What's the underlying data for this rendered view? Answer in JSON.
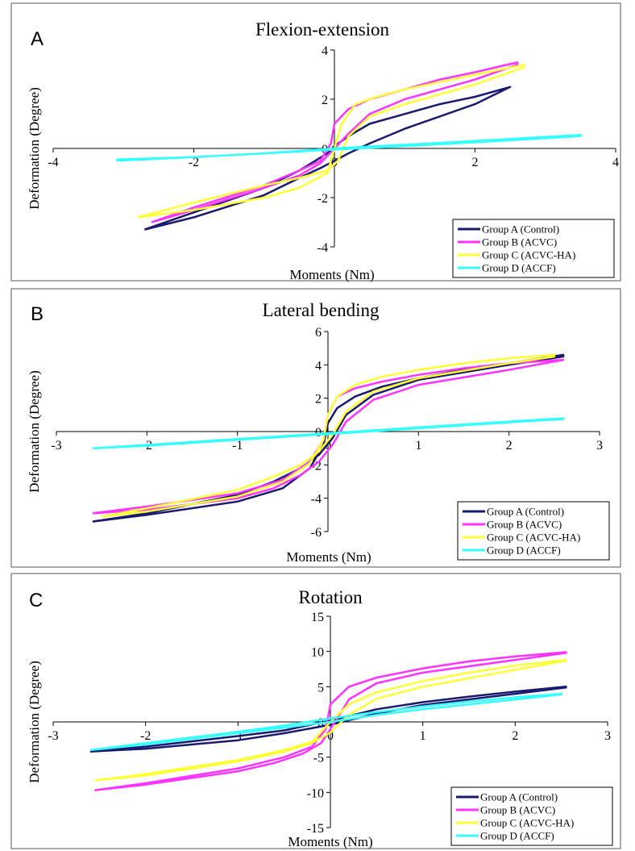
{
  "chart_data": [
    {
      "type": "line",
      "panel_label": "A",
      "title": "Flexion-extension",
      "xlabel": "Moments (Nm)",
      "ylabel": "Deformation (Degree)",
      "xlim": [
        -4,
        4
      ],
      "ylim": [
        -4,
        4
      ],
      "xticks": [
        "-4",
        "-2",
        "0",
        "2",
        "4"
      ],
      "yticks": [
        "-4",
        "-2",
        "0",
        "2",
        "4"
      ],
      "grid": false,
      "legend": "bottom-right",
      "series": [
        {
          "name": "Group A (Control)",
          "color": "#1a1a6e",
          "x": [
            -2.7,
            -2.0,
            -1.0,
            -0.5,
            -0.1,
            0.0,
            0.2,
            0.5,
            1.0,
            1.5,
            2.0,
            2.5
          ],
          "y": [
            -3.3,
            -2.6,
            -1.6,
            -0.9,
            -0.2,
            0.1,
            0.5,
            1.0,
            1.4,
            1.8,
            2.1,
            2.5
          ],
          "x_return": [
            2.5,
            2.0,
            1.0,
            0.5,
            0.2,
            0.0,
            -0.2,
            -0.5,
            -1.0,
            -2.0,
            -2.7
          ],
          "y_return": [
            2.5,
            1.8,
            0.8,
            0.2,
            -0.2,
            -0.5,
            -0.8,
            -1.2,
            -1.9,
            -2.8,
            -3.3
          ]
        },
        {
          "name": "Group B (ACVC)",
          "color": "#ff33ff",
          "x": [
            -2.6,
            -2.0,
            -1.0,
            -0.5,
            -0.2,
            -0.05,
            0.0,
            0.2,
            0.5,
            1.0,
            1.5,
            2.0,
            2.6
          ],
          "y": [
            -3.0,
            -2.4,
            -1.5,
            -0.9,
            -0.5,
            0.2,
            1.0,
            1.6,
            2.0,
            2.4,
            2.8,
            3.1,
            3.5
          ],
          "x_return": [
            2.6,
            2.0,
            1.0,
            0.5,
            0.2,
            0.0,
            -0.2,
            -0.5,
            -1.0,
            -2.0,
            -2.6
          ],
          "y_return": [
            3.4,
            2.8,
            2.0,
            1.4,
            0.6,
            0.0,
            -0.6,
            -1.1,
            -1.6,
            -2.5,
            -3.0
          ]
        },
        {
          "name": "Group C (ACVC-HA)",
          "color": "#ffff33",
          "x": [
            -2.8,
            -2.0,
            -1.0,
            -0.5,
            -0.1,
            0.0,
            0.1,
            0.3,
            0.6,
            1.0,
            1.5,
            2.0,
            2.7
          ],
          "y": [
            -2.8,
            -2.5,
            -2.0,
            -1.6,
            -1.0,
            0.0,
            1.0,
            1.8,
            2.1,
            2.4,
            2.7,
            3.0,
            3.4
          ],
          "x_return": [
            2.7,
            2.0,
            1.0,
            0.5,
            0.2,
            0.05,
            -0.1,
            -0.5,
            -1.0,
            -2.0,
            -2.8
          ],
          "y_return": [
            3.3,
            2.6,
            1.8,
            1.3,
            0.5,
            -0.5,
            -0.9,
            -1.2,
            -1.5,
            -2.2,
            -2.8
          ]
        },
        {
          "name": "Group D (ACCF)",
          "color": "#33ffff",
          "x": [
            -3.1,
            -2.0,
            -1.0,
            0.0,
            1.0,
            2.0,
            3.5
          ],
          "y": [
            -0.5,
            -0.35,
            -0.2,
            0.0,
            0.15,
            0.3,
            0.55
          ],
          "x_return": [
            3.5,
            2.0,
            1.0,
            0.0,
            -1.0,
            -2.0,
            -3.1
          ],
          "y_return": [
            0.5,
            0.25,
            0.1,
            -0.05,
            -0.2,
            -0.35,
            -0.45
          ]
        }
      ]
    },
    {
      "type": "line",
      "panel_label": "B",
      "title": "Lateral bending",
      "xlabel": "Moments (Nm)",
      "ylabel": "Deformation (Degree)",
      "xlim": [
        -3,
        3
      ],
      "ylim": [
        -6,
        6
      ],
      "xticks": [
        "-3",
        "-2",
        "-1",
        "0",
        "1",
        "2",
        "3"
      ],
      "yticks": [
        "-6",
        "-4",
        "-2",
        "0",
        "2",
        "4",
        "6"
      ],
      "grid": false,
      "legend": "bottom-right",
      "series": [
        {
          "name": "Group A (Control)",
          "color": "#1a1a6e",
          "x": [
            -2.6,
            -2.0,
            -1.0,
            -0.5,
            -0.2,
            -0.05,
            0.0,
            0.1,
            0.3,
            0.6,
            1.0,
            1.5,
            2.0,
            2.6
          ],
          "y": [
            -5.4,
            -5.0,
            -4.2,
            -3.4,
            -2.2,
            -0.8,
            0.5,
            1.4,
            2.1,
            2.7,
            3.2,
            3.7,
            4.1,
            4.6
          ],
          "x_return": [
            2.6,
            2.0,
            1.0,
            0.5,
            0.2,
            0.05,
            -0.1,
            -0.3,
            -0.6,
            -1.0,
            -2.0,
            -2.6
          ],
          "y_return": [
            4.5,
            4.0,
            3.1,
            2.2,
            1.0,
            -0.4,
            -1.4,
            -2.2,
            -3.0,
            -3.8,
            -4.9,
            -5.4
          ]
        },
        {
          "name": "Group B (ACVC)",
          "color": "#ff33ff",
          "x": [
            -2.6,
            -2.0,
            -1.0,
            -0.5,
            -0.2,
            -0.05,
            0.0,
            0.1,
            0.3,
            0.6,
            1.0,
            1.5,
            2.0,
            2.6
          ],
          "y": [
            -4.9,
            -4.5,
            -3.7,
            -2.9,
            -1.8,
            -0.5,
            1.0,
            2.1,
            2.6,
            3.0,
            3.4,
            3.8,
            4.1,
            4.3
          ],
          "x_return": [
            2.6,
            2.0,
            1.0,
            0.5,
            0.2,
            0.05,
            -0.1,
            -0.3,
            -0.6,
            -1.0,
            -2.0,
            -2.6
          ],
          "y_return": [
            4.3,
            3.7,
            2.8,
            1.9,
            0.6,
            -0.8,
            -1.8,
            -2.6,
            -3.4,
            -4.0,
            -4.7,
            -4.9
          ]
        },
        {
          "name": "Group C (ACVC-HA)",
          "color": "#ffff33",
          "x": [
            -2.5,
            -2.0,
            -1.0,
            -0.5,
            -0.2,
            -0.05,
            0.0,
            0.1,
            0.3,
            0.6,
            1.0,
            1.5,
            2.0,
            2.5
          ],
          "y": [
            -5.1,
            -4.8,
            -3.9,
            -3.0,
            -1.9,
            -0.5,
            1.0,
            2.1,
            2.8,
            3.3,
            3.7,
            4.1,
            4.4,
            4.6
          ],
          "x_return": [
            2.5,
            2.0,
            1.0,
            0.5,
            0.2,
            0.05,
            -0.1,
            -0.3,
            -0.6,
            -1.0,
            -2.0,
            -2.5
          ],
          "y_return": [
            4.5,
            4.1,
            3.2,
            2.4,
            1.2,
            -0.2,
            -1.2,
            -2.0,
            -2.7,
            -3.5,
            -4.6,
            -5.1
          ]
        },
        {
          "name": "Group D (ACCF)",
          "color": "#33ffff",
          "x": [
            -2.6,
            -2.0,
            -1.0,
            0.0,
            1.0,
            2.0,
            2.6
          ],
          "y": [
            -1.0,
            -0.8,
            -0.45,
            -0.1,
            0.25,
            0.6,
            0.8
          ],
          "x_return": [
            2.6,
            2.0,
            1.0,
            0.0,
            -1.0,
            -2.0,
            -2.6
          ],
          "y_return": [
            0.75,
            0.55,
            0.2,
            -0.15,
            -0.5,
            -0.85,
            -1.0
          ]
        }
      ]
    },
    {
      "type": "line",
      "panel_label": "C",
      "title": "Rotation",
      "xlabel": "Moments (Nm)",
      "ylabel": "Deformation (Degree)",
      "xlim": [
        -3,
        3
      ],
      "ylim": [
        -15,
        15
      ],
      "xticks": [
        "-3",
        "-2",
        "-1",
        "0",
        "1",
        "2",
        "3"
      ],
      "yticks": [
        "-15",
        "-10",
        "-5",
        "0",
        "5",
        "10",
        "15"
      ],
      "grid": false,
      "legend": "bottom-right",
      "series": [
        {
          "name": "Group A (Control)",
          "color": "#1a1a6e",
          "x": [
            -2.6,
            -2.0,
            -1.0,
            -0.5,
            0.0,
            0.5,
            1.0,
            1.5,
            2.0,
            2.55
          ],
          "y": [
            -4.2,
            -3.5,
            -2.0,
            -1.2,
            0.2,
            1.8,
            2.8,
            3.6,
            4.3,
            5.0
          ],
          "x_return": [
            2.55,
            2.0,
            1.0,
            0.5,
            0.0,
            -0.5,
            -1.0,
            -2.0,
            -2.6
          ],
          "y_return": [
            4.9,
            4.0,
            2.4,
            1.2,
            -0.4,
            -1.6,
            -2.6,
            -3.8,
            -4.2
          ]
        },
        {
          "name": "Group B (ACVC)",
          "color": "#ff33ff",
          "x": [
            -2.55,
            -2.0,
            -1.0,
            -0.5,
            -0.2,
            -0.05,
            0.0,
            0.2,
            0.5,
            1.0,
            1.5,
            2.0,
            2.55
          ],
          "y": [
            -9.7,
            -8.7,
            -6.6,
            -5.0,
            -3.5,
            -1.0,
            2.5,
            5.0,
            6.3,
            7.6,
            8.6,
            9.3,
            9.9
          ],
          "x_return": [
            2.55,
            2.0,
            1.0,
            0.5,
            0.2,
            0.05,
            -0.1,
            -0.3,
            -0.6,
            -1.0,
            -2.0,
            -2.55
          ],
          "y_return": [
            9.8,
            8.8,
            7.0,
            5.5,
            3.2,
            0.0,
            -3.0,
            -4.5,
            -5.8,
            -7.0,
            -8.9,
            -9.7
          ]
        },
        {
          "name": "Group C (ACVC-HA)",
          "color": "#ffff33",
          "x": [
            -2.55,
            -2.0,
            -1.0,
            -0.5,
            -0.2,
            0.0,
            0.2,
            0.5,
            1.0,
            1.5,
            2.0,
            2.55
          ],
          "y": [
            -8.3,
            -7.4,
            -5.4,
            -4.0,
            -2.8,
            0.0,
            2.5,
            4.2,
            5.8,
            7.0,
            8.0,
            8.8
          ],
          "x_return": [
            2.55,
            2.0,
            1.0,
            0.5,
            0.2,
            0.0,
            -0.2,
            -0.5,
            -1.0,
            -2.0,
            -2.55
          ],
          "y_return": [
            8.7,
            7.4,
            5.0,
            3.3,
            1.0,
            -1.5,
            -3.0,
            -4.2,
            -5.6,
            -7.6,
            -8.3
          ]
        },
        {
          "name": "Group D (ACCF)",
          "color": "#33ffff",
          "x": [
            -2.6,
            -2.0,
            -1.0,
            -0.5,
            0.0,
            0.5,
            1.0,
            1.5,
            2.0,
            2.5
          ],
          "y": [
            -4.0,
            -3.0,
            -1.4,
            -0.5,
            0.5,
            1.4,
            2.2,
            2.9,
            3.5,
            4.0
          ],
          "x_return": [
            2.5,
            2.0,
            1.0,
            0.5,
            0.0,
            -0.5,
            -1.0,
            -2.0,
            -2.6
          ],
          "y_return": [
            3.9,
            3.2,
            1.8,
            1.0,
            0.0,
            -0.8,
            -1.6,
            -3.2,
            -4.0
          ]
        }
      ]
    }
  ]
}
